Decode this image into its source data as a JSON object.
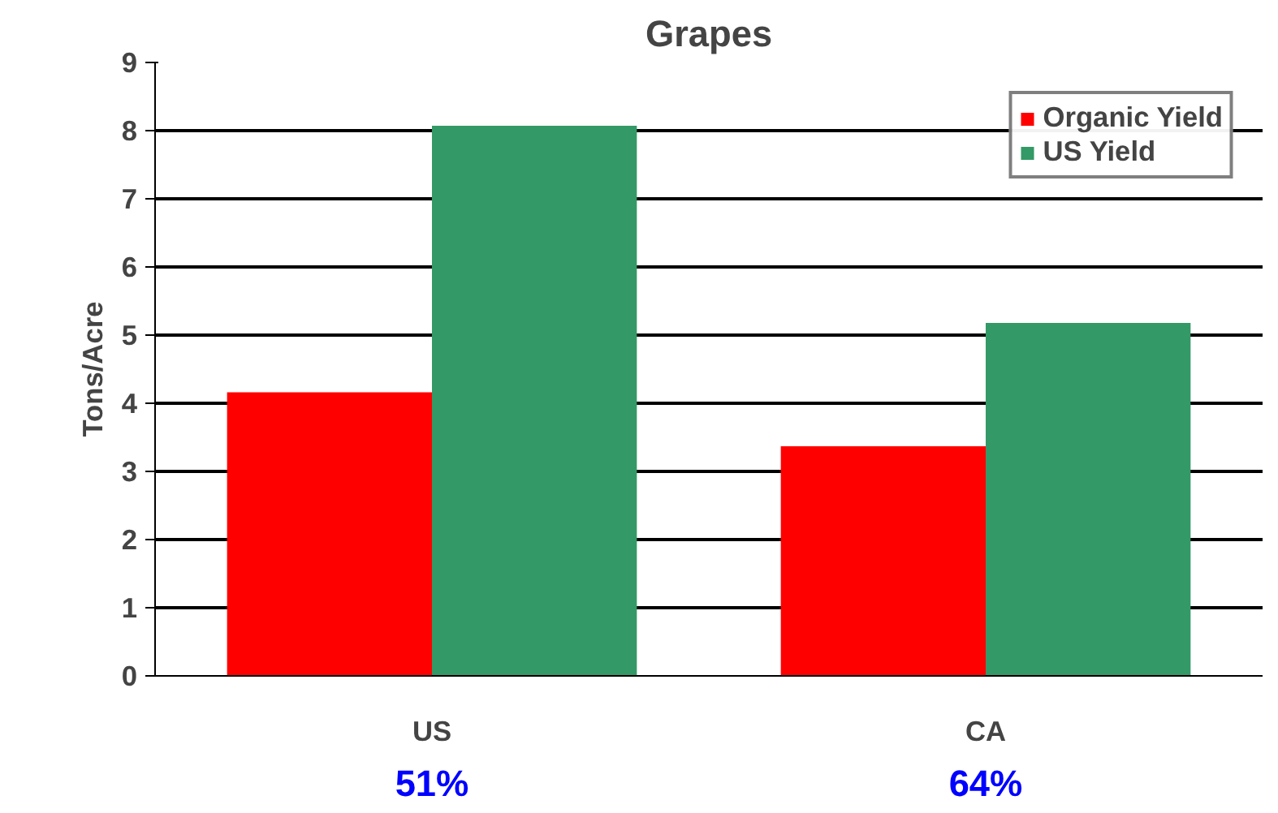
{
  "chart_data": {
    "type": "bar",
    "title": "Grapes",
    "ylabel": "Tons/Acre",
    "categories": [
      "US",
      "CA"
    ],
    "series": [
      {
        "name": "Organic Yield",
        "color": "#ff0000",
        "values": [
          4.16,
          3.37
        ]
      },
      {
        "name": "US Yield",
        "color": "#339966",
        "values": [
          8.07,
          5.18
        ]
      }
    ],
    "ylim": [
      0,
      9
    ],
    "yticks": [
      0,
      1,
      2,
      3,
      4,
      5,
      6,
      7,
      8,
      9
    ],
    "grid": "y",
    "legend": "top right",
    "annotations": [
      "51%",
      "64%"
    ]
  }
}
